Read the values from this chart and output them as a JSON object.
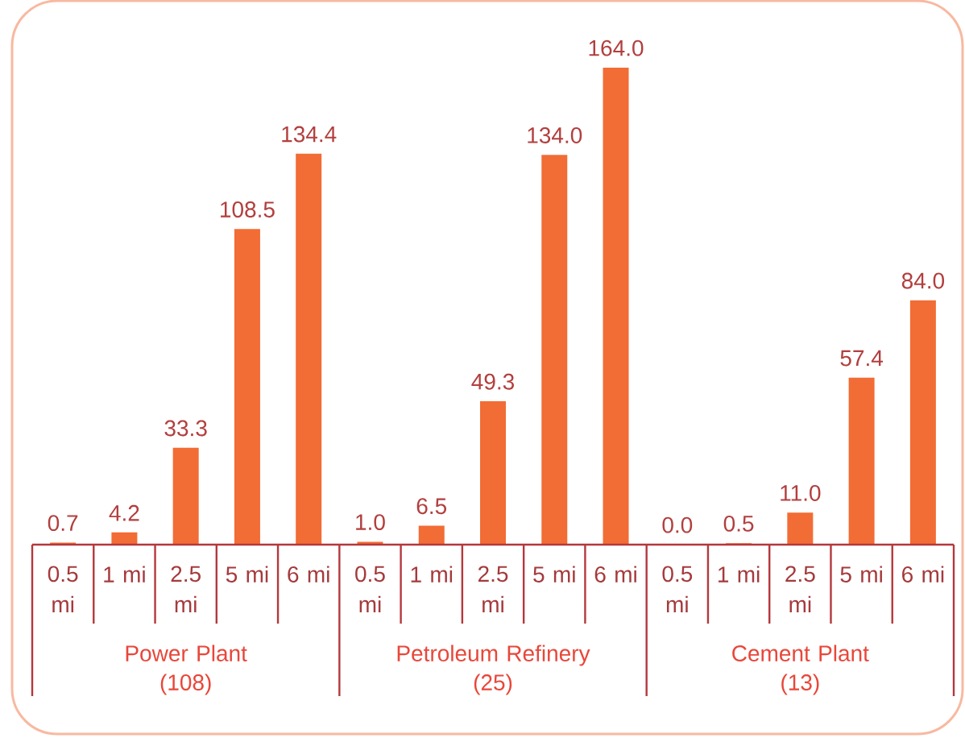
{
  "chart_data": {
    "type": "bar",
    "categories": [
      "0.5 mi",
      "1 mi",
      "2.5 mi",
      "5 mi",
      "6 mi",
      "0.5 mi",
      "1 mi",
      "2.5 mi",
      "5 mi",
      "6 mi",
      "0.5 mi",
      "1 mi",
      "2.5 mi",
      "5 mi",
      "6 mi"
    ],
    "values": [
      0.7,
      4.2,
      33.3,
      108.5,
      134.4,
      1.0,
      6.5,
      49.3,
      134.0,
      164.0,
      0.0,
      0.5,
      11.0,
      57.4,
      84.0
    ],
    "value_labels": [
      "0.7",
      "4.2",
      "33.3",
      "108.5",
      "134.4",
      "1.0",
      "6.5",
      "49.3",
      "134.0",
      "164.0",
      "0.0",
      "0.5",
      "11.0",
      "57.4",
      "84.0"
    ],
    "color": "#f26c35",
    "annotations": [
      "Power Plant\n(108)",
      "Petroleum Refinery\n(25)",
      "Cement Plant\n(13)"
    ]
  }
}
